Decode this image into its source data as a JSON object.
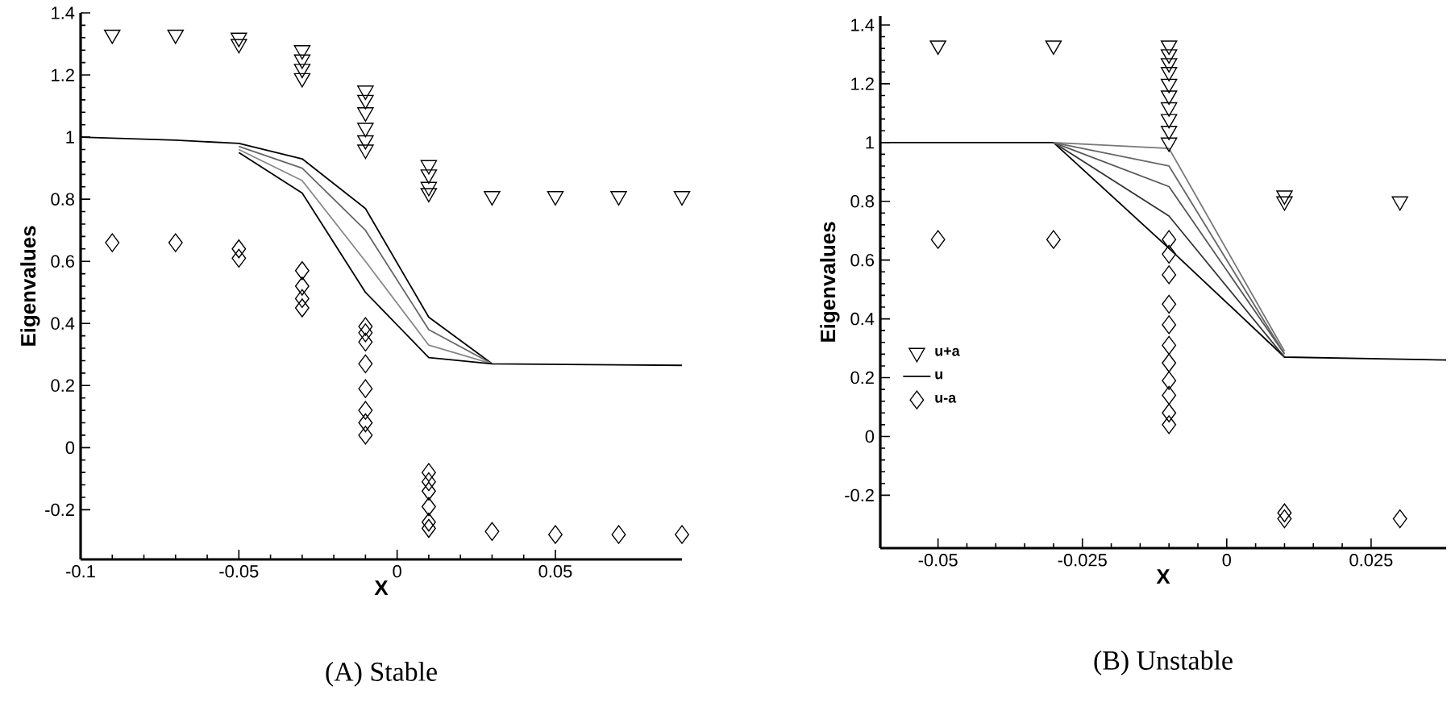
{
  "chart_data": [
    {
      "type": "line",
      "annotations": [
        "(A) Stable"
      ],
      "xlabel": "X",
      "ylabel": "Eigenvalues",
      "xlim": [
        -0.1,
        0.09
      ],
      "ylim": [
        -0.36,
        1.4
      ],
      "xticks": [
        -0.1,
        -0.05,
        0,
        0.05
      ],
      "yticks": [
        -0.2,
        0,
        0.2,
        0.4,
        0.6,
        0.8,
        1,
        1.2,
        1.4
      ],
      "grid": false,
      "legend": false,
      "series": [
        {
          "type": "scatter",
          "marker": "triangle",
          "color": "#000000",
          "x": [
            -0.09,
            -0.07,
            -0.05,
            -0.05,
            -0.03,
            -0.03,
            -0.03,
            -0.03,
            -0.01,
            -0.01,
            -0.01,
            -0.01,
            -0.01,
            -0.01,
            0.01,
            0.01,
            0.01,
            0.01,
            0.03,
            0.05,
            0.07,
            0.09
          ],
          "values": [
            1.33,
            1.33,
            1.32,
            1.3,
            1.28,
            1.25,
            1.22,
            1.19,
            1.15,
            1.12,
            1.08,
            1.03,
            0.99,
            0.96,
            0.91,
            0.88,
            0.84,
            0.82,
            0.81,
            0.81,
            0.81,
            0.81
          ]
        },
        {
          "color": "#000000",
          "x": [
            -0.1,
            -0.07,
            -0.05,
            -0.03,
            -0.01,
            0.01,
            0.03,
            0.09
          ],
          "values": [
            1.0,
            0.99,
            0.98,
            0.93,
            0.77,
            0.42,
            0.27,
            0.265
          ]
        },
        {
          "color": "#666666",
          "x": [
            -0.05,
            -0.03,
            -0.01,
            0.01,
            0.03
          ],
          "values": [
            0.97,
            0.9,
            0.7,
            0.38,
            0.27
          ]
        },
        {
          "color": "#888888",
          "x": [
            -0.05,
            -0.03,
            -0.01,
            0.01,
            0.03
          ],
          "values": [
            0.96,
            0.86,
            0.6,
            0.33,
            0.27
          ]
        },
        {
          "color": "#000000",
          "x": [
            -0.05,
            -0.03,
            -0.01,
            0.01,
            0.03
          ],
          "values": [
            0.95,
            0.82,
            0.5,
            0.29,
            0.27
          ]
        },
        {
          "type": "scatter",
          "marker": "diamond",
          "color": "#000000",
          "x": [
            -0.09,
            -0.07,
            -0.05,
            -0.05,
            -0.03,
            -0.03,
            -0.03,
            -0.03,
            -0.01,
            -0.01,
            -0.01,
            -0.01,
            -0.01,
            -0.01,
            -0.01,
            -0.01,
            0.01,
            0.01,
            0.01,
            0.01,
            0.01,
            0.01,
            0.03,
            0.05,
            0.07,
            0.09
          ],
          "values": [
            0.66,
            0.66,
            0.64,
            0.61,
            0.57,
            0.52,
            0.48,
            0.45,
            0.39,
            0.37,
            0.34,
            0.27,
            0.19,
            0.12,
            0.08,
            0.04,
            -0.08,
            -0.11,
            -0.14,
            -0.19,
            -0.24,
            -0.26,
            -0.27,
            -0.28,
            -0.28,
            -0.28
          ]
        }
      ]
    },
    {
      "type": "line",
      "annotations": [
        "(B) Unstable"
      ],
      "xlabel": "X",
      "ylabel": "Eigenvalues",
      "xlim": [
        -0.06,
        0.038
      ],
      "ylim": [
        -0.38,
        1.43
      ],
      "xticks": [
        -0.05,
        -0.025,
        0,
        0.025
      ],
      "yticks": [
        -0.2,
        0,
        0.2,
        0.4,
        0.6,
        0.8,
        1,
        1.2,
        1.4
      ],
      "grid": false,
      "legend": "left",
      "series": [
        {
          "type": "scatter",
          "name": "u+a",
          "marker": "triangle",
          "color": "#000000",
          "x": [
            -0.05,
            -0.03,
            -0.01,
            -0.01,
            -0.01,
            -0.01,
            -0.01,
            -0.01,
            -0.01,
            -0.01,
            -0.01,
            -0.01,
            0.01,
            0.01,
            0.03
          ],
          "values": [
            1.33,
            1.33,
            1.33,
            1.3,
            1.27,
            1.24,
            1.2,
            1.16,
            1.12,
            1.08,
            1.04,
            1.0,
            0.82,
            0.8,
            0.8
          ]
        },
        {
          "name": "u",
          "color": "#000000",
          "x": [
            -0.06,
            -0.03,
            -0.01,
            0.01,
            0.038
          ],
          "values": [
            1.0,
            1.0,
            0.64,
            0.27,
            0.26
          ]
        },
        {
          "color": "#333333",
          "x": [
            -0.03,
            -0.01,
            0.01
          ],
          "values": [
            1.0,
            0.75,
            0.27
          ]
        },
        {
          "color": "#555555",
          "x": [
            -0.03,
            -0.01,
            0.01
          ],
          "values": [
            1.0,
            0.85,
            0.28
          ]
        },
        {
          "color": "#666666",
          "x": [
            -0.03,
            -0.01,
            0.01
          ],
          "values": [
            1.0,
            0.92,
            0.28
          ]
        },
        {
          "color": "#777777",
          "x": [
            -0.03,
            -0.01,
            0.01
          ],
          "values": [
            1.0,
            0.98,
            0.29
          ]
        },
        {
          "type": "scatter",
          "name": "u-a",
          "marker": "diamond",
          "color": "#000000",
          "x": [
            -0.05,
            -0.03,
            -0.01,
            -0.01,
            -0.01,
            -0.01,
            -0.01,
            -0.01,
            -0.01,
            -0.01,
            -0.01,
            -0.01,
            -0.01,
            0.01,
            0.01,
            0.03
          ],
          "values": [
            0.67,
            0.67,
            0.67,
            0.62,
            0.55,
            0.45,
            0.38,
            0.31,
            0.25,
            0.19,
            0.14,
            0.08,
            0.04,
            -0.26,
            -0.28,
            -0.28
          ]
        }
      ]
    }
  ]
}
